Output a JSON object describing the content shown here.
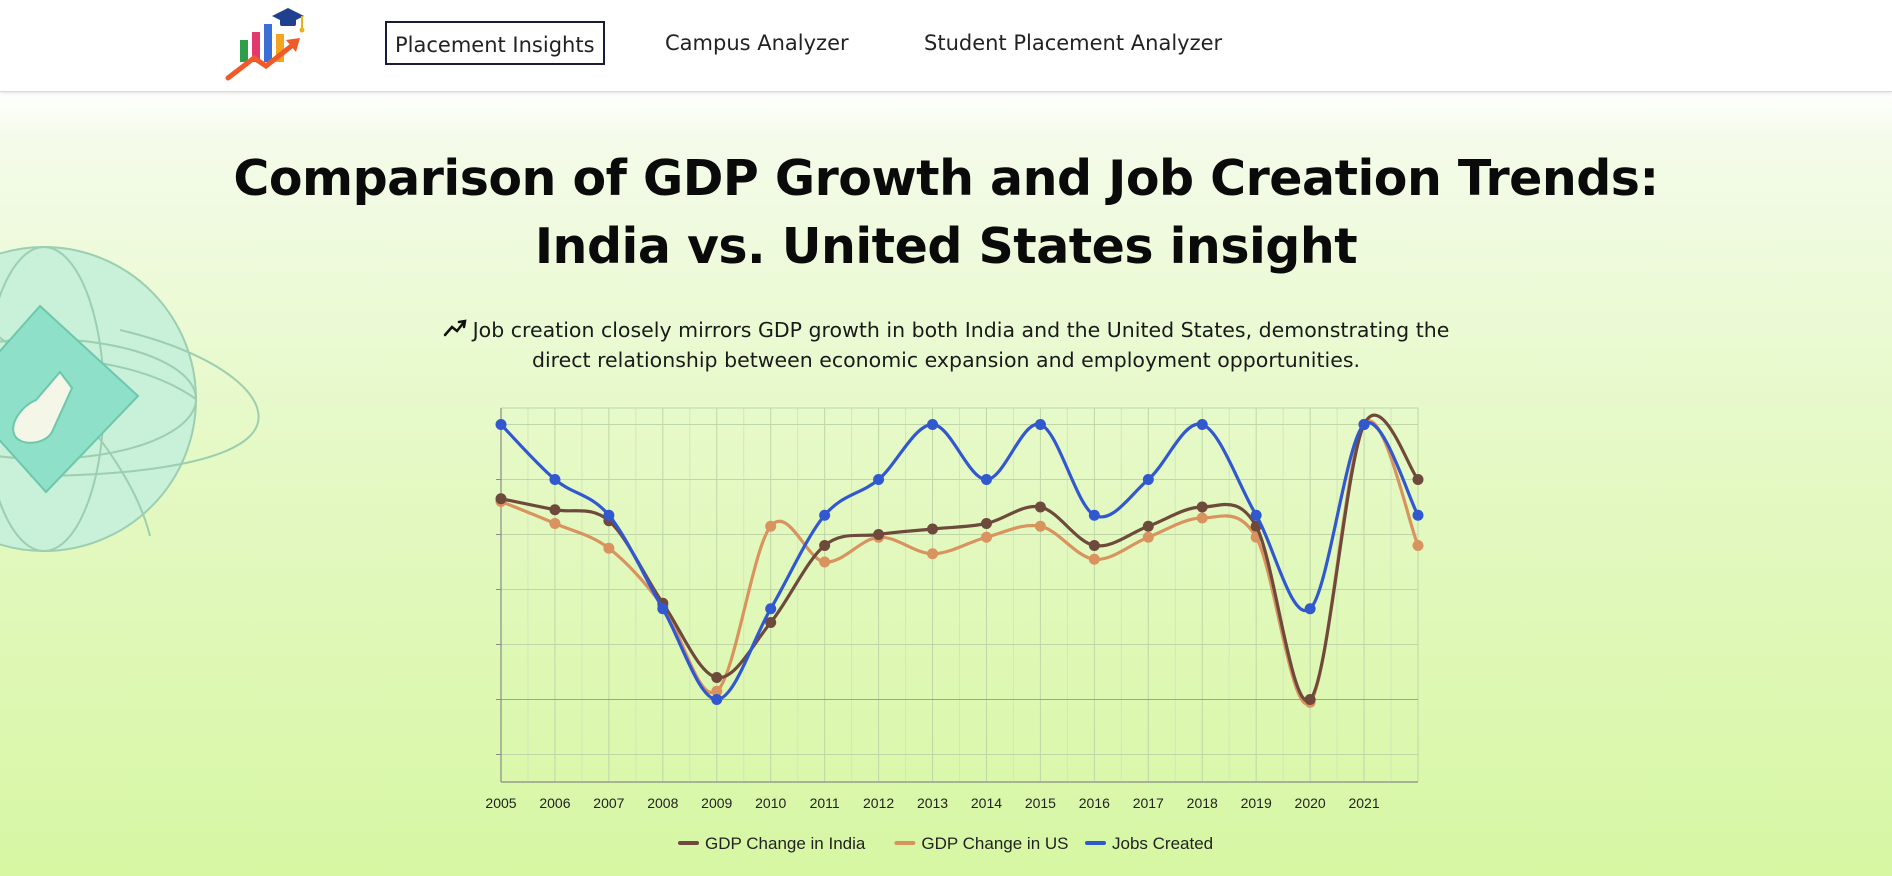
{
  "nav": {
    "items": [
      {
        "label": "Placement Insights",
        "active": true
      },
      {
        "label": "Campus Analyzer",
        "active": false
      },
      {
        "label": "Student Placement Analyzer",
        "active": false
      }
    ]
  },
  "page": {
    "title_line1": "Comparison of GDP Growth and Job Creation Trends:",
    "title_line2": "India vs. United States insight",
    "insight_line1": "Job creation closely mirrors GDP growth in both India and the United States, demonstrating the",
    "insight_line2": "direct relationship between economic expansion and employment opportunities."
  },
  "colors": {
    "india": "#6e4a3c",
    "us": "#d9935f",
    "jobs": "#3158cf"
  },
  "chart_data": {
    "type": "line",
    "x": [
      2005,
      2006,
      2007,
      2008,
      2009,
      2010,
      2011,
      2012,
      2013,
      2014,
      2015,
      2016,
      2017,
      2018,
      2019,
      2020,
      2021,
      2022
    ],
    "x_tick_labels": [
      "2005",
      "2006",
      "2007",
      "2008",
      "2009",
      "2010",
      "2011",
      "2012",
      "2013",
      "2014",
      "2015",
      "2016",
      "2017",
      "2018",
      "2019",
      "2020",
      "2021"
    ],
    "ylim": [
      -1.5,
      5.3
    ],
    "y_ticks": [
      -1,
      0,
      1,
      2,
      3,
      4,
      5
    ],
    "grid": true,
    "legend_position": "bottom",
    "series": [
      {
        "name": "GDP Change in India",
        "color": "#6e4a3c",
        "values": [
          3.65,
          3.45,
          3.25,
          1.75,
          0.4,
          1.4,
          2.8,
          3.0,
          3.1,
          3.2,
          3.5,
          2.8,
          3.15,
          3.5,
          3.15,
          0.0,
          5.0,
          4.0
        ]
      },
      {
        "name": "GDP Change in US",
        "color": "#d9935f",
        "values": [
          3.6,
          3.2,
          2.75,
          1.7,
          0.15,
          3.15,
          2.5,
          2.95,
          2.65,
          2.95,
          3.15,
          2.55,
          2.95,
          3.3,
          2.95,
          -0.05,
          5.0,
          2.8
        ]
      },
      {
        "name": "Jobs Created",
        "color": "#3158cf",
        "values": [
          5.0,
          4.0,
          3.35,
          1.65,
          0.0,
          1.65,
          3.35,
          4.0,
          5.0,
          4.0,
          5.0,
          3.35,
          4.0,
          5.0,
          3.35,
          1.65,
          5.0,
          3.35
        ]
      }
    ]
  }
}
